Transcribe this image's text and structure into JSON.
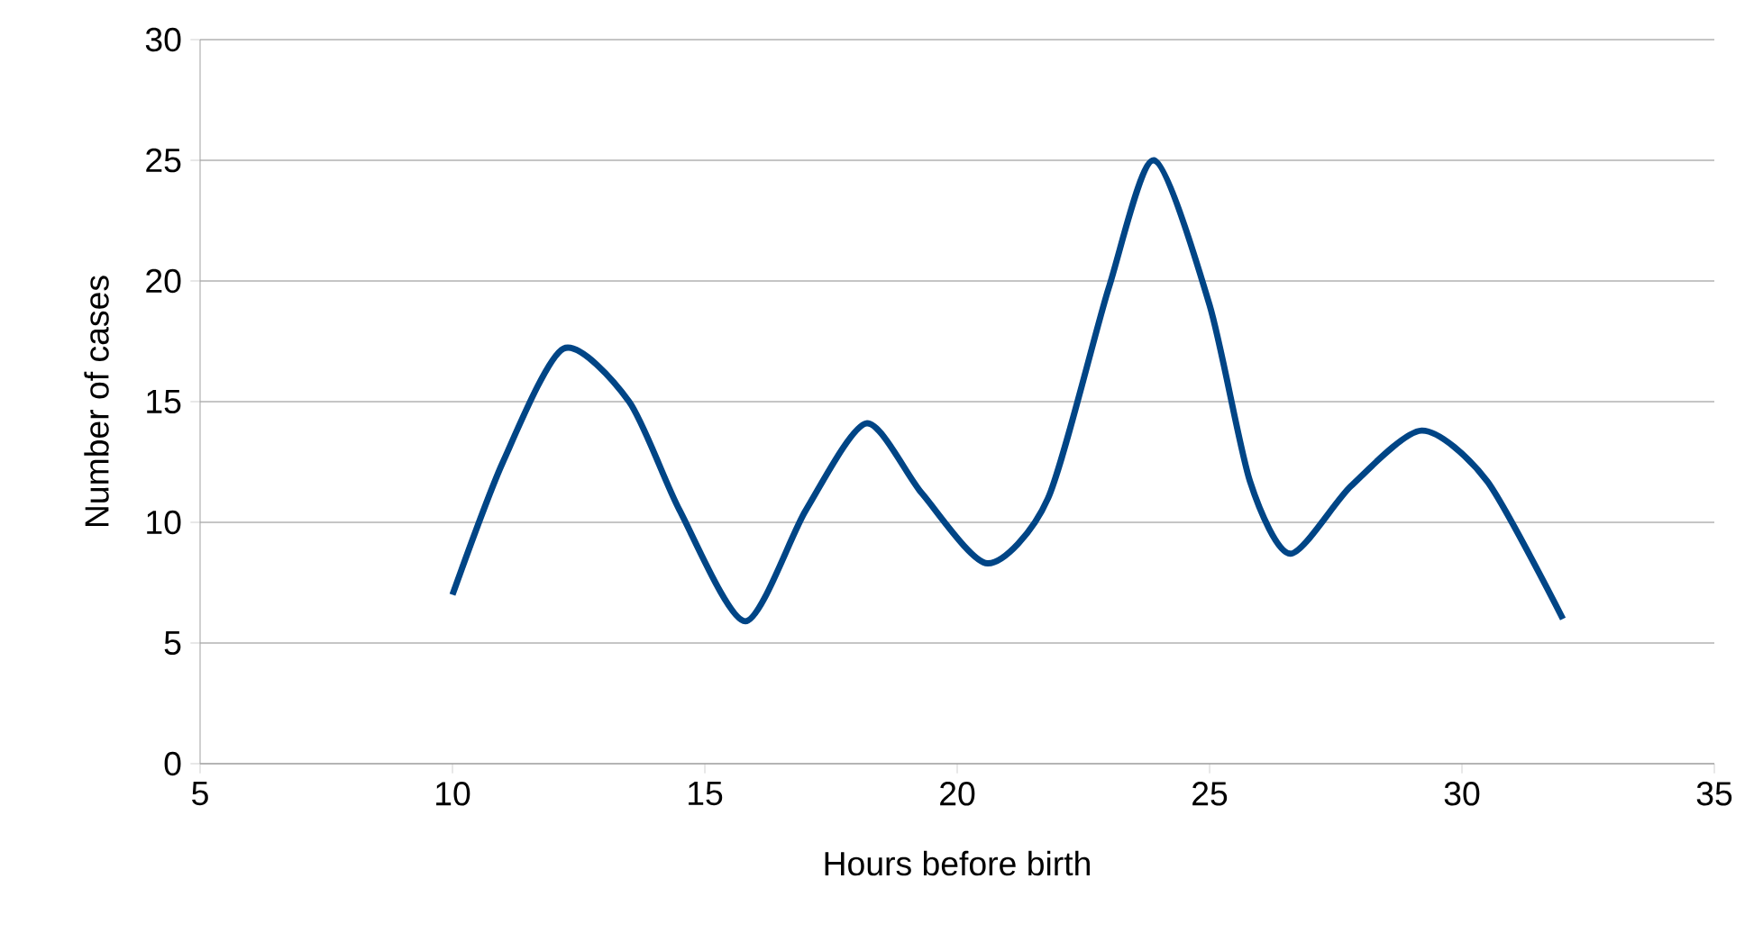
{
  "chart_data": {
    "type": "line",
    "xlabel": "Hours before birth",
    "ylabel": "Number of cases",
    "x": [
      10,
      11,
      12.2,
      13.5,
      14.5,
      15.8,
      17,
      18.2,
      19.3,
      20.6,
      21.8,
      23,
      23.9,
      25,
      25.8,
      26.6,
      27.8,
      29.2,
      30.5,
      32
    ],
    "series": [
      {
        "color": "#004586",
        "values": [
          7,
          12.5,
          17.2,
          15,
          10.5,
          5.9,
          10.5,
          14.1,
          11.2,
          8.3,
          11,
          19.7,
          25,
          19,
          11.7,
          8.7,
          11.5,
          13.8,
          11.7,
          6
        ]
      }
    ],
    "xlim": [
      5,
      35
    ],
    "ylim": [
      0,
      30
    ],
    "xticks": [
      5,
      10,
      15,
      20,
      25,
      30,
      35
    ],
    "yticks": [
      0,
      5,
      10,
      15,
      20,
      25,
      30
    ],
    "grid": "y",
    "marker": "none",
    "line_style": "solid"
  }
}
